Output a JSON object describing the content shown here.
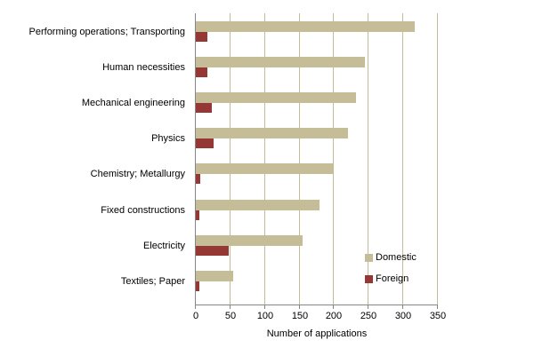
{
  "chart_data": {
    "type": "bar",
    "orientation": "horizontal",
    "title": "",
    "xlabel": "Number of applications",
    "ylabel": "",
    "xlim": [
      0,
      350
    ],
    "xticks": [
      0,
      50,
      100,
      150,
      200,
      250,
      300,
      350
    ],
    "grid": true,
    "legend_position": "inside-lower-right",
    "categories": [
      "Performing operations; Transporting",
      "Human necessities",
      "Mechanical engineering",
      "Physics",
      "Chemistry; Metallurgy",
      "Fixed constructions",
      "Electricity",
      "Textiles; Paper"
    ],
    "series": [
      {
        "name": "Domestic",
        "color": "#c4bd97",
        "values": [
          316,
          245,
          232,
          220,
          198,
          179,
          154,
          54
        ]
      },
      {
        "name": "Foreign",
        "color": "#953735",
        "values": [
          17,
          17,
          23,
          26,
          6,
          5,
          48,
          5
        ]
      }
    ]
  },
  "colors": {
    "gridline": "#c4bc96",
    "axis": "#868686"
  }
}
